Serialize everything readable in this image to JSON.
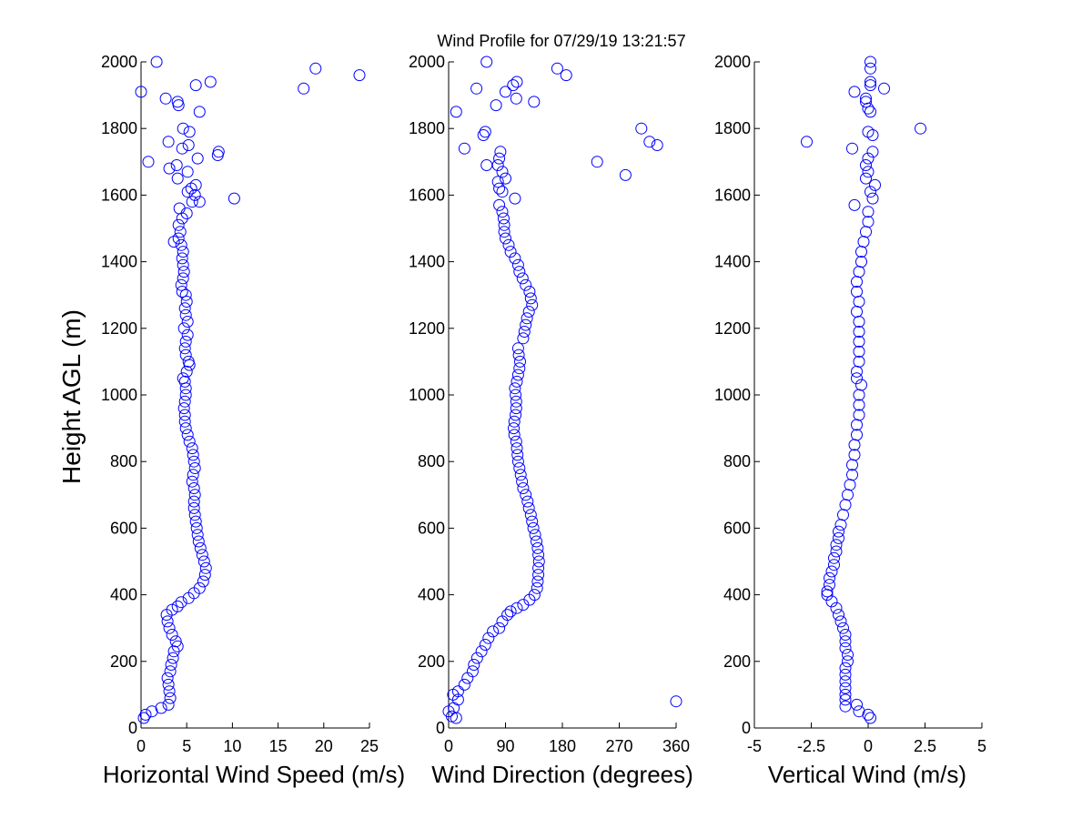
{
  "figure": {
    "title": "Wind Profile for  07/29/19 13:21:57",
    "ylabel": "Height AGL (m)"
  },
  "chart_data": [
    {
      "type": "scatter",
      "xlabel": "Horizontal Wind Speed (m/s)",
      "ylabel": "Height AGL (m)",
      "xlim": [
        0,
        25
      ],
      "ylim": [
        0,
        2000
      ],
      "xticks": [
        "0",
        "5",
        "10",
        "15",
        "20",
        "25"
      ],
      "yticks": [
        "0",
        "200",
        "400",
        "600",
        "800",
        "1000",
        "1200",
        "1400",
        "1600",
        "1800",
        "2000"
      ],
      "marker_color": "#0000ff",
      "points": [
        [
          0.3,
          30
        ],
        [
          1.2,
          50
        ],
        [
          0.5,
          40
        ],
        [
          2.2,
          60
        ],
        [
          3.0,
          70
        ],
        [
          3.2,
          90
        ],
        [
          3.1,
          110
        ],
        [
          3.0,
          130
        ],
        [
          2.9,
          150
        ],
        [
          3.2,
          170
        ],
        [
          3.3,
          190
        ],
        [
          3.5,
          210
        ],
        [
          3.6,
          230
        ],
        [
          4.0,
          245
        ],
        [
          3.8,
          260
        ],
        [
          3.4,
          280
        ],
        [
          3.1,
          300
        ],
        [
          2.9,
          320
        ],
        [
          2.8,
          340
        ],
        [
          3.4,
          355
        ],
        [
          4.0,
          365
        ],
        [
          4.4,
          378
        ],
        [
          5.2,
          390
        ],
        [
          5.8,
          405
        ],
        [
          6.4,
          420
        ],
        [
          6.8,
          440
        ],
        [
          7.0,
          460
        ],
        [
          7.1,
          480
        ],
        [
          6.9,
          500
        ],
        [
          6.7,
          520
        ],
        [
          6.5,
          540
        ],
        [
          6.3,
          560
        ],
        [
          6.2,
          580
        ],
        [
          6.1,
          600
        ],
        [
          6.0,
          620
        ],
        [
          5.9,
          640
        ],
        [
          5.8,
          660
        ],
        [
          5.8,
          680
        ],
        [
          5.9,
          700
        ],
        [
          5.8,
          720
        ],
        [
          5.6,
          740
        ],
        [
          5.7,
          760
        ],
        [
          5.9,
          780
        ],
        [
          5.8,
          800
        ],
        [
          5.7,
          820
        ],
        [
          5.6,
          840
        ],
        [
          5.3,
          860
        ],
        [
          5.1,
          880
        ],
        [
          4.9,
          900
        ],
        [
          4.8,
          920
        ],
        [
          4.8,
          940
        ],
        [
          4.7,
          960
        ],
        [
          4.8,
          980
        ],
        [
          4.9,
          1000
        ],
        [
          4.9,
          1020
        ],
        [
          4.8,
          1040
        ],
        [
          4.6,
          1050
        ],
        [
          5.0,
          1070
        ],
        [
          5.3,
          1090
        ],
        [
          5.2,
          1100
        ],
        [
          4.9,
          1120
        ],
        [
          4.8,
          1140
        ],
        [
          4.9,
          1160
        ],
        [
          5.1,
          1180
        ],
        [
          4.7,
          1200
        ],
        [
          5.1,
          1220
        ],
        [
          4.9,
          1240
        ],
        [
          4.8,
          1260
        ],
        [
          5.0,
          1280
        ],
        [
          4.9,
          1300
        ],
        [
          4.5,
          1310
        ],
        [
          4.4,
          1330
        ],
        [
          4.6,
          1350
        ],
        [
          4.7,
          1370
        ],
        [
          4.6,
          1390
        ],
        [
          4.5,
          1410
        ],
        [
          4.6,
          1430
        ],
        [
          4.4,
          1450
        ],
        [
          3.6,
          1460
        ],
        [
          4.1,
          1470
        ],
        [
          4.3,
          1490
        ],
        [
          4.1,
          1510
        ],
        [
          4.5,
          1530
        ],
        [
          5.0,
          1545
        ],
        [
          4.2,
          1560
        ],
        [
          5.6,
          1580
        ],
        [
          6.4,
          1580
        ],
        [
          10.2,
          1590
        ],
        [
          5.9,
          1600
        ],
        [
          5.1,
          1610
        ],
        [
          5.5,
          1620
        ],
        [
          6.0,
          1630
        ],
        [
          4.0,
          1650
        ],
        [
          5.1,
          1670
        ],
        [
          3.9,
          1690
        ],
        [
          3.1,
          1680
        ],
        [
          0.8,
          1700
        ],
        [
          6.2,
          1710
        ],
        [
          8.4,
          1720
        ],
        [
          8.5,
          1730
        ],
        [
          4.5,
          1740
        ],
        [
          5.2,
          1750
        ],
        [
          3.0,
          1760
        ],
        [
          5.3,
          1790
        ],
        [
          4.6,
          1800
        ],
        [
          6.4,
          1850
        ],
        [
          4.1,
          1870
        ],
        [
          4.0,
          1880
        ],
        [
          2.7,
          1890
        ],
        [
          0.0,
          1910
        ],
        [
          6.0,
          1930
        ],
        [
          7.6,
          1940
        ],
        [
          17.8,
          1920
        ],
        [
          23.9,
          1960
        ],
        [
          19.1,
          1980
        ],
        [
          1.7,
          2000
        ]
      ]
    },
    {
      "type": "scatter",
      "xlabel": "Wind Direction (degrees)",
      "ylabel": "",
      "xlim": [
        0,
        360
      ],
      "ylim": [
        0,
        2000
      ],
      "xticks": [
        "0",
        "90",
        "180",
        "270",
        "360"
      ],
      "yticks": [
        "0",
        "200",
        "400",
        "600",
        "800",
        "1000",
        "1200",
        "1400",
        "1600",
        "1800",
        "2000"
      ],
      "marker_color": "#0000ff",
      "points": [
        [
          0,
          50
        ],
        [
          5,
          35
        ],
        [
          12,
          30
        ],
        [
          8,
          60
        ],
        [
          15,
          85
        ],
        [
          7,
          100
        ],
        [
          15,
          110
        ],
        [
          25,
          130
        ],
        [
          30,
          150
        ],
        [
          38,
          170
        ],
        [
          40,
          190
        ],
        [
          45,
          210
        ],
        [
          52,
          230
        ],
        [
          58,
          250
        ],
        [
          63,
          270
        ],
        [
          70,
          290
        ],
        [
          80,
          300
        ],
        [
          85,
          320
        ],
        [
          93,
          340
        ],
        [
          98,
          350
        ],
        [
          108,
          360
        ],
        [
          118,
          370
        ],
        [
          128,
          385
        ],
        [
          136,
          400
        ],
        [
          140,
          420
        ],
        [
          141,
          440
        ],
        [
          142,
          460
        ],
        [
          142,
          480
        ],
        [
          143,
          500
        ],
        [
          142,
          520
        ],
        [
          141,
          540
        ],
        [
          139,
          560
        ],
        [
          137,
          580
        ],
        [
          134,
          600
        ],
        [
          132,
          620
        ],
        [
          130,
          640
        ],
        [
          127,
          660
        ],
        [
          125,
          680
        ],
        [
          122,
          700
        ],
        [
          118,
          720
        ],
        [
          116,
          740
        ],
        [
          114,
          760
        ],
        [
          112,
          780
        ],
        [
          110,
          800
        ],
        [
          109,
          820
        ],
        [
          108,
          840
        ],
        [
          107,
          860
        ],
        [
          104,
          880
        ],
        [
          103,
          900
        ],
        [
          104,
          920
        ],
        [
          106,
          940
        ],
        [
          107,
          960
        ],
        [
          107,
          980
        ],
        [
          106,
          1000
        ],
        [
          105,
          1020
        ],
        [
          108,
          1040
        ],
        [
          110,
          1060
        ],
        [
          112,
          1080
        ],
        [
          113,
          1100
        ],
        [
          111,
          1120
        ],
        [
          110,
          1140
        ],
        [
          118,
          1170
        ],
        [
          120,
          1190
        ],
        [
          122,
          1210
        ],
        [
          124,
          1230
        ],
        [
          127,
          1250
        ],
        [
          132,
          1270
        ],
        [
          130,
          1290
        ],
        [
          128,
          1310
        ],
        [
          122,
          1330
        ],
        [
          117,
          1350
        ],
        [
          112,
          1370
        ],
        [
          110,
          1390
        ],
        [
          105,
          1410
        ],
        [
          98,
          1430
        ],
        [
          95,
          1450
        ],
        [
          90,
          1470
        ],
        [
          88,
          1490
        ],
        [
          88,
          1510
        ],
        [
          87,
          1530
        ],
        [
          85,
          1550
        ],
        [
          80,
          1570
        ],
        [
          105,
          1590
        ],
        [
          85,
          1610
        ],
        [
          80,
          1620
        ],
        [
          78,
          1640
        ],
        [
          90,
          1650
        ],
        [
          85,
          1670
        ],
        [
          78,
          1690
        ],
        [
          80,
          1710
        ],
        [
          82,
          1730
        ],
        [
          25,
          1740
        ],
        [
          60,
          1690
        ],
        [
          330,
          1750
        ],
        [
          318,
          1760
        ],
        [
          305,
          1800
        ],
        [
          235,
          1700
        ],
        [
          280,
          1660
        ],
        [
          55,
          1780
        ],
        [
          58,
          1790
        ],
        [
          12,
          1850
        ],
        [
          75,
          1870
        ],
        [
          135,
          1880
        ],
        [
          107,
          1890
        ],
        [
          90,
          1910
        ],
        [
          44,
          1920
        ],
        [
          102,
          1930
        ],
        [
          108,
          1940
        ],
        [
          172,
          1980
        ],
        [
          186,
          1960
        ],
        [
          60,
          2000
        ],
        [
          360,
          80
        ]
      ]
    },
    {
      "type": "scatter",
      "xlabel": "Vertical Wind (m/s)",
      "ylabel": "",
      "xlim": [
        -5,
        5
      ],
      "ylim": [
        0,
        2000
      ],
      "xticks": [
        "-5",
        "-2.5",
        "0",
        "2.5",
        "5"
      ],
      "yticks": [
        "0",
        "200",
        "400",
        "600",
        "800",
        "1000",
        "1200",
        "1400",
        "1600",
        "1800",
        "2000"
      ],
      "marker_color": "#0000ff",
      "points": [
        [
          0.1,
          30
        ],
        [
          0.0,
          40
        ],
        [
          -0.4,
          50
        ],
        [
          -0.5,
          70
        ],
        [
          -1.0,
          65
        ],
        [
          -1.0,
          85
        ],
        [
          -1.0,
          100
        ],
        [
          -1.0,
          120
        ],
        [
          -1.0,
          140
        ],
        [
          -1.0,
          160
        ],
        [
          -1.0,
          180
        ],
        [
          -0.9,
          200
        ],
        [
          -0.9,
          220
        ],
        [
          -1.0,
          240
        ],
        [
          -1.0,
          260
        ],
        [
          -1.0,
          280
        ],
        [
          -1.1,
          300
        ],
        [
          -1.2,
          320
        ],
        [
          -1.3,
          340
        ],
        [
          -1.4,
          360
        ],
        [
          -1.6,
          380
        ],
        [
          -1.8,
          400
        ],
        [
          -1.8,
          410
        ],
        [
          -1.7,
          430
        ],
        [
          -1.7,
          450
        ],
        [
          -1.6,
          470
        ],
        [
          -1.5,
          490
        ],
        [
          -1.5,
          510
        ],
        [
          -1.4,
          530
        ],
        [
          -1.4,
          550
        ],
        [
          -1.3,
          570
        ],
        [
          -1.3,
          590
        ],
        [
          -1.2,
          610
        ],
        [
          -1.1,
          640
        ],
        [
          -1.0,
          670
        ],
        [
          -0.9,
          700
        ],
        [
          -0.8,
          730
        ],
        [
          -0.7,
          760
        ],
        [
          -0.7,
          790
        ],
        [
          -0.6,
          820
        ],
        [
          -0.6,
          850
        ],
        [
          -0.5,
          880
        ],
        [
          -0.5,
          910
        ],
        [
          -0.4,
          940
        ],
        [
          -0.4,
          970
        ],
        [
          -0.4,
          1000
        ],
        [
          -0.3,
          1030
        ],
        [
          -0.5,
          1050
        ],
        [
          -0.5,
          1070
        ],
        [
          -0.4,
          1100
        ],
        [
          -0.4,
          1130
        ],
        [
          -0.4,
          1160
        ],
        [
          -0.4,
          1190
        ],
        [
          -0.4,
          1220
        ],
        [
          -0.5,
          1250
        ],
        [
          -0.4,
          1280
        ],
        [
          -0.5,
          1310
        ],
        [
          -0.5,
          1340
        ],
        [
          -0.4,
          1370
        ],
        [
          -0.3,
          1400
        ],
        [
          -0.3,
          1430
        ],
        [
          -0.2,
          1460
        ],
        [
          -0.1,
          1490
        ],
        [
          0.0,
          1520
        ],
        [
          0.0,
          1550
        ],
        [
          -0.6,
          1570
        ],
        [
          0.2,
          1590
        ],
        [
          0.1,
          1610
        ],
        [
          0.3,
          1630
        ],
        [
          -0.1,
          1650
        ],
        [
          0.0,
          1670
        ],
        [
          -0.1,
          1690
        ],
        [
          0.0,
          1710
        ],
        [
          0.2,
          1730
        ],
        [
          -0.7,
          1740
        ],
        [
          -2.7,
          1760
        ],
        [
          2.3,
          1800
        ],
        [
          0.2,
          1780
        ],
        [
          0.0,
          1790
        ],
        [
          0.1,
          1850
        ],
        [
          0.0,
          1860
        ],
        [
          -0.1,
          1880
        ],
        [
          -0.1,
          1890
        ],
        [
          -0.6,
          1910
        ],
        [
          0.7,
          1920
        ],
        [
          0.1,
          1930
        ],
        [
          0.1,
          1940
        ],
        [
          0.1,
          1980
        ],
        [
          0.1,
          2000
        ]
      ]
    }
  ]
}
